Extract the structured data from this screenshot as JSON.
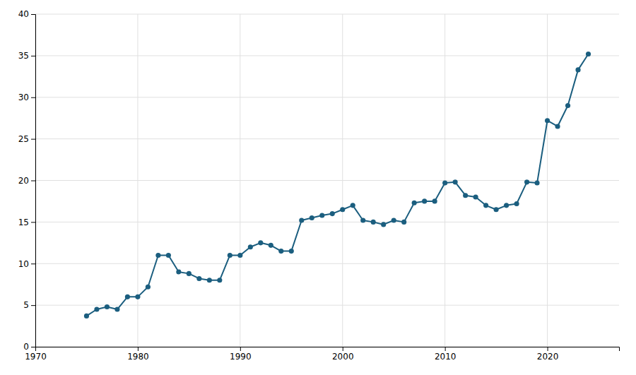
{
  "chart_data": {
    "type": "line",
    "x": [
      1975,
      1976,
      1977,
      1978,
      1979,
      1980,
      1981,
      1982,
      1983,
      1984,
      1985,
      1986,
      1987,
      1988,
      1989,
      1990,
      1991,
      1992,
      1993,
      1994,
      1995,
      1996,
      1997,
      1998,
      1999,
      2000,
      2001,
      2002,
      2003,
      2004,
      2005,
      2006,
      2007,
      2008,
      2009,
      2010,
      2011,
      2012,
      2013,
      2014,
      2015,
      2016,
      2017,
      2018,
      2019,
      2020,
      2021,
      2022,
      2023,
      2024
    ],
    "values": [
      3.7,
      4.5,
      4.8,
      4.5,
      6.0,
      6.0,
      7.2,
      11.0,
      11.0,
      9.0,
      8.8,
      8.2,
      8.0,
      8.0,
      11.0,
      11.0,
      12.0,
      12.5,
      12.2,
      11.5,
      11.5,
      15.2,
      15.5,
      15.8,
      16.0,
      16.5,
      17.0,
      15.2,
      15.0,
      14.7,
      15.2,
      15.0,
      17.3,
      17.5,
      17.5,
      19.7,
      19.8,
      18.2,
      18.0,
      17.0,
      16.5,
      17.0,
      17.2,
      19.8,
      19.7,
      27.2,
      26.5,
      29.0,
      33.3,
      35.2
    ],
    "color": "#1b5e7f",
    "marker": "circle",
    "xlim": [
      1970,
      2027
    ],
    "ylim": [
      0,
      40
    ],
    "xticks": [
      1970,
      1980,
      1990,
      2000,
      2010,
      2020
    ],
    "yticks": [
      0,
      5,
      10,
      15,
      20,
      25,
      30,
      35,
      40
    ],
    "grid": true
  }
}
